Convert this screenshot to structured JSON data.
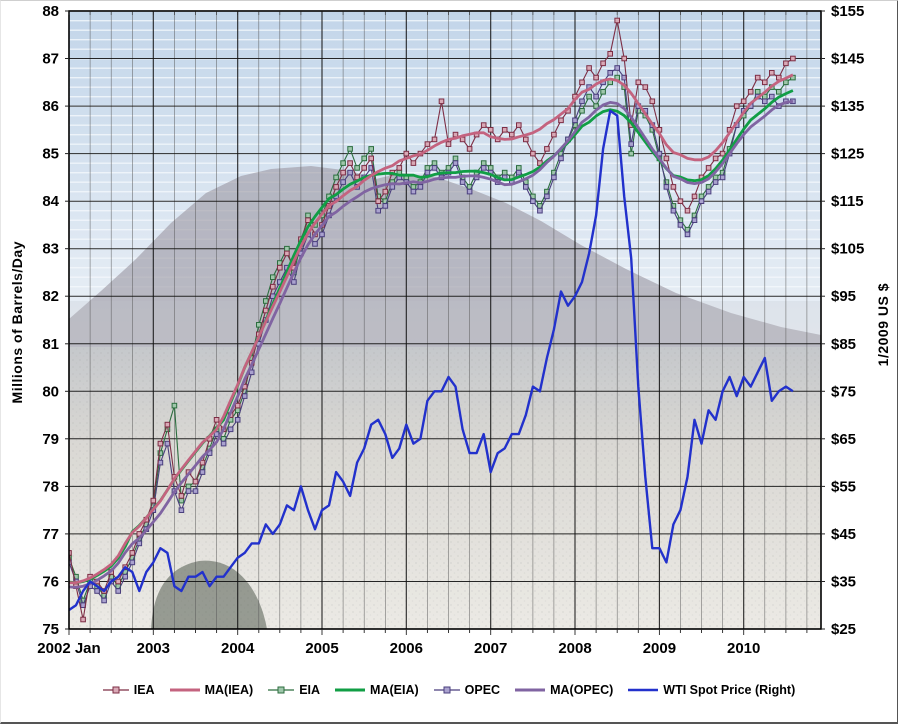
{
  "background": {
    "type": "photo",
    "description": "hazy flat-topped mountain above a city skyline with trees in the lower foreground"
  },
  "chart_data": {
    "type": "line",
    "x_axis": {
      "start": "2002 Jan",
      "frequency": "monthly",
      "months_total": 108,
      "tick_labels": [
        "2002 Jan",
        "2003",
        "2004",
        "2005",
        "2006",
        "2007",
        "2008",
        "2009",
        "2010"
      ],
      "minor_gridline_interval_months": 3
    },
    "left_axis": {
      "label": "Millions of Barrels/Day",
      "min": 75,
      "max": 88,
      "step": 1
    },
    "right_axis": {
      "label": "1/2009 US $",
      "min": 25,
      "max": 155,
      "step": 10,
      "prefix": "$"
    },
    "legend": {
      "position": "bottom",
      "entries": [
        "IEA",
        "MA(IEA)",
        "EIA",
        "MA(EIA)",
        "OPEC",
        "MA(OPEC)",
        "WTI Spot Price (Right)"
      ]
    },
    "series": [
      {
        "name": "IEA",
        "axis": "left",
        "style": "marker-line",
        "color": "#7d2e45",
        "marker_fill": "#d9a9b6",
        "values": [
          76.6,
          75.9,
          75.2,
          76.1,
          76.0,
          75.8,
          76.2,
          76.0,
          76.3,
          76.6,
          77.0,
          77.3,
          77.7,
          78.9,
          79.3,
          78.2,
          77.8,
          78.3,
          78.1,
          78.5,
          79.0,
          79.4,
          79.2,
          79.5,
          79.7,
          80.1,
          80.6,
          81.2,
          81.7,
          82.2,
          82.6,
          82.9,
          82.6,
          83.2,
          83.6,
          83.3,
          83.5,
          83.9,
          84.3,
          84.6,
          84.8,
          84.5,
          84.7,
          84.9,
          84.0,
          84.2,
          84.6,
          84.7,
          85.0,
          84.8,
          85.0,
          85.2,
          85.3,
          86.1,
          85.2,
          85.4,
          85.3,
          85.1,
          85.4,
          85.6,
          85.5,
          85.3,
          85.5,
          85.4,
          85.6,
          85.3,
          85.0,
          84.8,
          85.1,
          85.4,
          85.7,
          85.9,
          86.2,
          86.5,
          86.8,
          86.6,
          86.9,
          87.1,
          87.8,
          87.0,
          85.6,
          86.5,
          86.4,
          86.1,
          85.5,
          84.9,
          84.3,
          84.0,
          83.8,
          84.1,
          84.5,
          84.7,
          84.9,
          85.0,
          85.5,
          86.0,
          86.1,
          86.3,
          86.6,
          86.5,
          86.7,
          86.6,
          86.9,
          87.0
        ]
      },
      {
        "name": "MA(IEA)",
        "axis": "left",
        "style": "ma-line",
        "color": "#c4637f",
        "ma_of": "IEA",
        "window": 12
      },
      {
        "name": "EIA",
        "axis": "left",
        "style": "marker-line",
        "color": "#2c6e3f",
        "marker_fill": "#9fc7ab",
        "values": [
          76.5,
          76.1,
          75.6,
          76.0,
          75.9,
          75.7,
          76.1,
          75.9,
          76.2,
          76.5,
          76.9,
          77.2,
          77.6,
          78.7,
          79.2,
          79.7,
          77.7,
          78.0,
          78.1,
          78.4,
          78.8,
          79.2,
          79.0,
          79.4,
          79.6,
          80.0,
          80.7,
          81.4,
          81.9,
          82.4,
          82.7,
          83.0,
          82.5,
          83.1,
          83.7,
          83.5,
          83.7,
          84.1,
          84.5,
          84.8,
          85.1,
          84.7,
          84.9,
          85.1,
          84.1,
          84.0,
          84.4,
          84.6,
          84.5,
          84.3,
          84.4,
          84.7,
          84.8,
          84.6,
          84.7,
          84.9,
          84.5,
          84.3,
          84.6,
          84.8,
          84.7,
          84.5,
          84.6,
          84.5,
          84.7,
          84.4,
          84.1,
          83.9,
          84.2,
          84.6,
          85.0,
          85.3,
          85.6,
          85.9,
          86.2,
          86.0,
          86.3,
          86.5,
          86.6,
          86.4,
          85.0,
          85.9,
          85.8,
          85.5,
          84.9,
          84.4,
          83.9,
          83.6,
          83.4,
          83.7,
          84.1,
          84.3,
          84.5,
          84.6,
          85.1,
          85.6,
          85.8,
          86.0,
          86.3,
          86.2,
          86.4,
          86.3,
          86.5,
          86.6
        ]
      },
      {
        "name": "MA(EIA)",
        "axis": "left",
        "style": "ma-line",
        "color": "#119e45",
        "ma_of": "EIA",
        "window": 12
      },
      {
        "name": "OPEC",
        "axis": "left",
        "style": "marker-line",
        "color": "#4a3f7d",
        "marker_fill": "#aaa2cf",
        "values": [
          76.4,
          76.0,
          75.5,
          75.9,
          75.8,
          75.6,
          76.0,
          75.8,
          76.1,
          76.4,
          76.8,
          77.1,
          77.5,
          78.5,
          78.9,
          77.9,
          77.5,
          77.9,
          77.9,
          78.3,
          78.7,
          79.1,
          78.9,
          79.2,
          79.4,
          79.9,
          80.4,
          81.0,
          81.5,
          82.0,
          82.3,
          82.6,
          82.3,
          82.9,
          83.3,
          83.1,
          83.3,
          83.7,
          84.1,
          84.4,
          84.6,
          84.3,
          84.5,
          84.7,
          83.8,
          83.9,
          84.3,
          84.5,
          84.4,
          84.2,
          84.3,
          84.6,
          84.7,
          84.5,
          84.6,
          84.8,
          84.4,
          84.2,
          84.5,
          84.7,
          84.6,
          84.4,
          84.5,
          84.4,
          84.6,
          84.3,
          84.0,
          83.8,
          84.1,
          84.5,
          84.9,
          85.3,
          85.7,
          86.1,
          86.4,
          86.2,
          86.5,
          86.7,
          86.8,
          86.6,
          85.2,
          86.0,
          85.9,
          85.6,
          85.0,
          84.3,
          83.8,
          83.5,
          83.3,
          83.6,
          84.0,
          84.2,
          84.4,
          84.5,
          85.0,
          85.6,
          85.9,
          86.0,
          86.2,
          86.1,
          86.2,
          86.0,
          86.1,
          86.1
        ]
      },
      {
        "name": "MA(OPEC)",
        "axis": "left",
        "style": "ma-line",
        "color": "#8064a2",
        "ma_of": "OPEC",
        "window": 12
      },
      {
        "name": "WTI Spot Price (Right)",
        "axis": "right",
        "style": "line",
        "color": "#2231cc",
        "values": [
          29,
          30,
          33,
          35,
          34,
          33,
          35,
          36,
          38,
          37,
          33,
          37,
          39,
          42,
          41,
          34,
          33,
          36,
          36,
          37,
          34,
          36,
          36,
          38,
          40,
          41,
          43,
          43,
          47,
          45,
          47,
          51,
          50,
          55,
          50,
          46,
          50,
          51,
          58,
          56,
          53,
          60,
          63,
          68,
          69,
          66,
          61,
          63,
          68,
          64,
          65,
          73,
          75,
          75,
          78,
          76,
          67,
          62,
          62,
          66,
          58,
          62,
          63,
          66,
          66,
          70,
          76,
          75,
          82,
          88,
          96,
          93,
          95,
          98,
          104,
          112,
          126,
          134,
          133,
          116,
          103,
          76,
          57,
          42,
          42,
          39,
          47,
          50,
          57,
          69,
          64,
          71,
          69,
          75,
          78,
          74,
          78,
          76,
          79,
          82,
          73,
          75,
          76,
          75
        ]
      }
    ]
  }
}
